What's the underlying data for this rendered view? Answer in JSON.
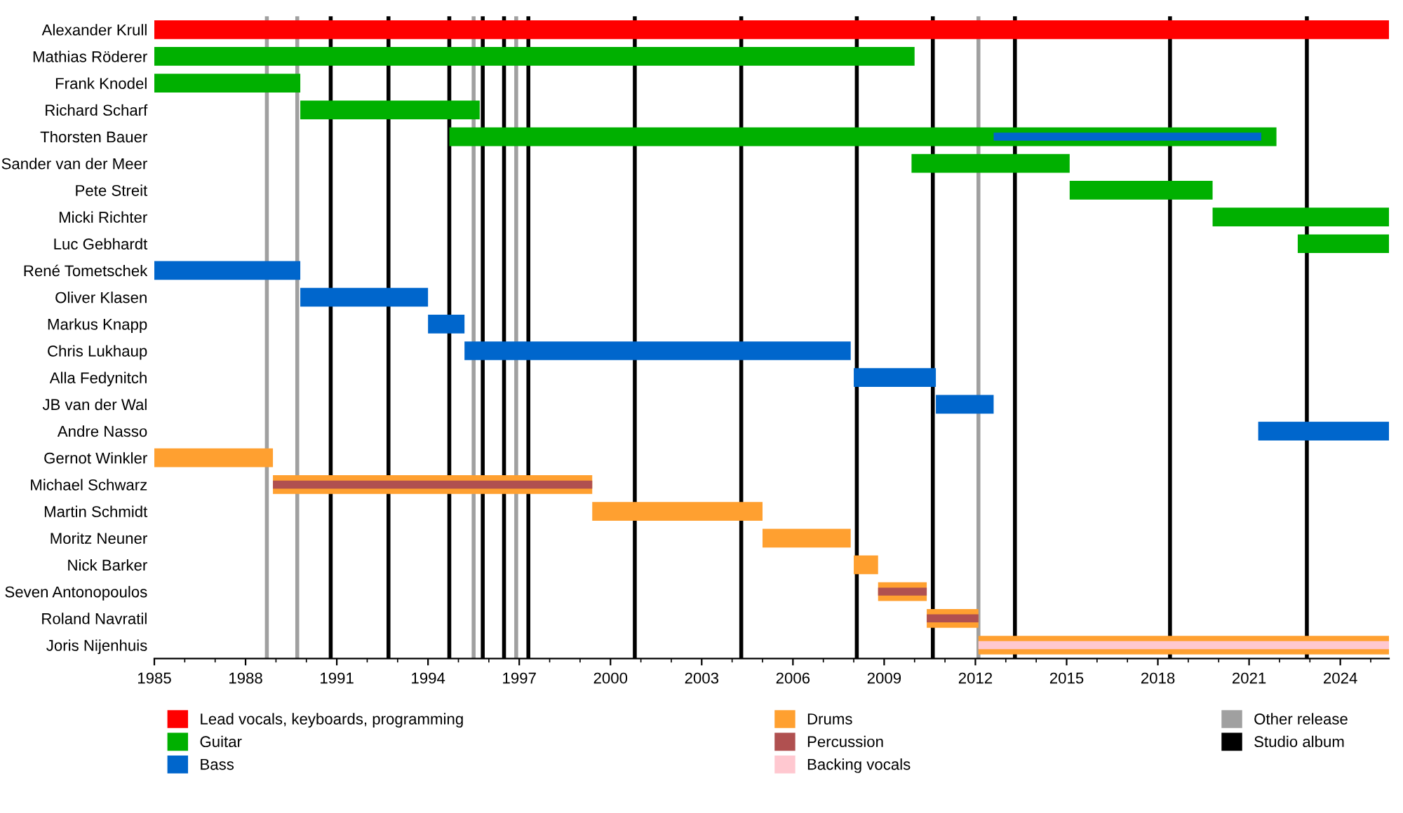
{
  "chart_data": {
    "type": "bar",
    "orientation": "horizontal",
    "categories": [
      "Alexander Krull",
      "Mathias Röderer",
      "Frank Knodel",
      "Richard Scharf",
      "Thorsten Bauer",
      "Sander van der Meer",
      "Pete Streit",
      "Micki Richter",
      "Luc Gebhardt",
      "René Tometschek",
      "Oliver Klasen",
      "Markus Knapp",
      "Chris Lukhaup",
      "Alla Fedynitch",
      "JB van der Wal",
      "Andre Nasso",
      "Gernot Winkler",
      "Michael Schwarz",
      "Martin Schmidt",
      "Moritz Neuner",
      "Nick Barker",
      "Seven Antonopoulos",
      "Roland Navratil",
      "Joris Nijenhuis"
    ],
    "series": [
      {
        "name": "Lead vocals, keyboards, programming",
        "color": "#ff0000",
        "base": [
          1985,
          null,
          null,
          null,
          null,
          null,
          null,
          null,
          null,
          null,
          null,
          null,
          null,
          null,
          null,
          null,
          null,
          null,
          null,
          null,
          null,
          null,
          null,
          null
        ],
        "values": [
          40.6,
          null,
          null,
          null,
          null,
          null,
          null,
          null,
          null,
          null,
          null,
          null,
          null,
          null,
          null,
          null,
          null,
          null,
          null,
          null,
          null,
          null,
          null,
          null
        ]
      },
      {
        "name": "Guitar",
        "color": "#00b000",
        "base": [
          null,
          1985,
          1985,
          1989.8,
          1994.7,
          2009.9,
          2015.1,
          2019.8,
          2022.6,
          null,
          null,
          null,
          null,
          null,
          null,
          null,
          null,
          null,
          null,
          null,
          null,
          null,
          null,
          null
        ],
        "values": [
          null,
          25.0,
          4.8,
          5.9,
          27.2,
          5.2,
          4.7,
          5.8,
          3.0,
          null,
          null,
          null,
          null,
          null,
          null,
          null,
          null,
          null,
          null,
          null,
          null,
          null,
          null,
          null
        ]
      },
      {
        "name": "Bass",
        "color": "#0066cc",
        "base": [
          null,
          null,
          null,
          null,
          2012.6,
          null,
          null,
          null,
          null,
          1985,
          1989.8,
          1994.0,
          1995.2,
          2008.0,
          2010.7,
          2021.3,
          null,
          null,
          null,
          null,
          null,
          null,
          null,
          null
        ],
        "values": [
          null,
          null,
          null,
          null,
          8.8,
          null,
          null,
          null,
          null,
          4.8,
          4.2,
          1.2,
          12.7,
          2.7,
          1.9,
          4.3,
          null,
          null,
          null,
          null,
          null,
          null,
          null,
          null
        ]
      },
      {
        "name": "Drums",
        "color": "#ffa030",
        "base": [
          null,
          null,
          null,
          null,
          null,
          null,
          null,
          null,
          null,
          null,
          null,
          null,
          null,
          null,
          null,
          null,
          1985,
          1988.9,
          1999.4,
          2005.0,
          2008.0,
          2008.8,
          2010.4,
          2012.1
        ],
        "values": [
          null,
          null,
          null,
          null,
          null,
          null,
          null,
          null,
          null,
          null,
          null,
          null,
          null,
          null,
          null,
          null,
          3.9,
          10.5,
          5.6,
          2.9,
          0.8,
          1.6,
          1.7,
          13.5
        ]
      },
      {
        "name": "Percussion",
        "color": "#b05050",
        "base": [
          null,
          null,
          null,
          null,
          null,
          null,
          null,
          null,
          null,
          null,
          null,
          null,
          null,
          null,
          null,
          null,
          null,
          1988.9,
          null,
          null,
          null,
          2008.8,
          2010.4,
          null
        ],
        "values": [
          null,
          null,
          null,
          null,
          null,
          null,
          null,
          null,
          null,
          null,
          null,
          null,
          null,
          null,
          null,
          null,
          null,
          10.5,
          null,
          null,
          null,
          1.6,
          1.7,
          null
        ]
      },
      {
        "name": "Backing vocals",
        "color": "#ffc8d0",
        "base": [
          null,
          null,
          null,
          null,
          null,
          null,
          null,
          null,
          null,
          null,
          null,
          null,
          null,
          null,
          null,
          null,
          null,
          null,
          null,
          null,
          null,
          null,
          null,
          2012.1
        ],
        "values": [
          null,
          null,
          null,
          null,
          null,
          null,
          null,
          null,
          null,
          null,
          null,
          null,
          null,
          null,
          null,
          null,
          null,
          null,
          null,
          null,
          null,
          null,
          null,
          13.5
        ]
      }
    ],
    "xlim": [
      1985,
      2025.6
    ],
    "xticks": [
      1985,
      {
        "value": 1986,
        "label": null
      },
      {
        "value": 1987,
        "label": null
      },
      1988,
      {
        "value": 1989,
        "label": null
      },
      {
        "value": 1990,
        "label": null
      },
      1991,
      {
        "value": 1992,
        "label": null
      },
      {
        "value": 1993,
        "label": null
      },
      1994,
      {
        "value": 1995,
        "label": null
      },
      {
        "value": 1996,
        "label": null
      },
      1997,
      {
        "value": 1998,
        "label": null
      },
      {
        "value": 1999,
        "label": null
      },
      2000,
      {
        "value": 2001,
        "label": null
      },
      {
        "value": 2002,
        "label": null
      },
      2003,
      {
        "value": 2004,
        "label": null
      },
      {
        "value": 2005,
        "label": null
      },
      2006,
      {
        "value": 2007,
        "label": null
      },
      {
        "value": 2008,
        "label": null
      },
      2009,
      {
        "value": 2010,
        "label": null
      },
      {
        "value": 2011,
        "label": null
      },
      2012,
      {
        "value": 2013,
        "label": null
      },
      {
        "value": 2014,
        "label": null
      },
      2015,
      {
        "value": 2016,
        "label": null
      },
      {
        "value": 2017,
        "label": null
      },
      2018,
      {
        "value": 2019,
        "label": null
      },
      {
        "value": 2020,
        "label": null
      },
      2021,
      {
        "value": 2022,
        "label": null
      },
      {
        "value": 2023,
        "label": null
      },
      2024,
      {
        "value": 2025,
        "label": null
      }
    ],
    "ref_lines": [
      {
        "axis": "x",
        "value": 1988.7,
        "label": "Other release",
        "color": "#a0a0a0"
      },
      {
        "axis": "x",
        "value": 1989.7,
        "color": "#a0a0a0"
      },
      {
        "axis": "x",
        "value": 1995.5,
        "color": "#a0a0a0"
      },
      {
        "axis": "x",
        "value": 1996.9,
        "color": "#a0a0a0"
      },
      {
        "axis": "x",
        "value": 2012.1,
        "color": "#a0a0a0"
      },
      {
        "axis": "x",
        "value": 1990.8,
        "label": "Studio album",
        "color": "#000000"
      },
      {
        "axis": "x",
        "value": 1992.7,
        "color": "#000000"
      },
      {
        "axis": "x",
        "value": 1994.7,
        "color": "#000000"
      },
      {
        "axis": "x",
        "value": 1995.8,
        "color": "#000000"
      },
      {
        "axis": "x",
        "value": 1996.5,
        "color": "#000000"
      },
      {
        "axis": "x",
        "value": 1997.3,
        "color": "#000000"
      },
      {
        "axis": "x",
        "value": 2000.8,
        "color": "#000000"
      },
      {
        "axis": "x",
        "value": 2004.3,
        "color": "#000000"
      },
      {
        "axis": "x",
        "value": 2008.1,
        "color": "#000000"
      },
      {
        "axis": "x",
        "value": 2010.6,
        "color": "#000000"
      },
      {
        "axis": "x",
        "value": 2013.3,
        "color": "#000000"
      },
      {
        "axis": "x",
        "value": 2018.4,
        "color": "#000000"
      },
      {
        "axis": "x",
        "value": 2022.9,
        "color": "#000000"
      }
    ],
    "legend": "bottom",
    "grid": false
  }
}
